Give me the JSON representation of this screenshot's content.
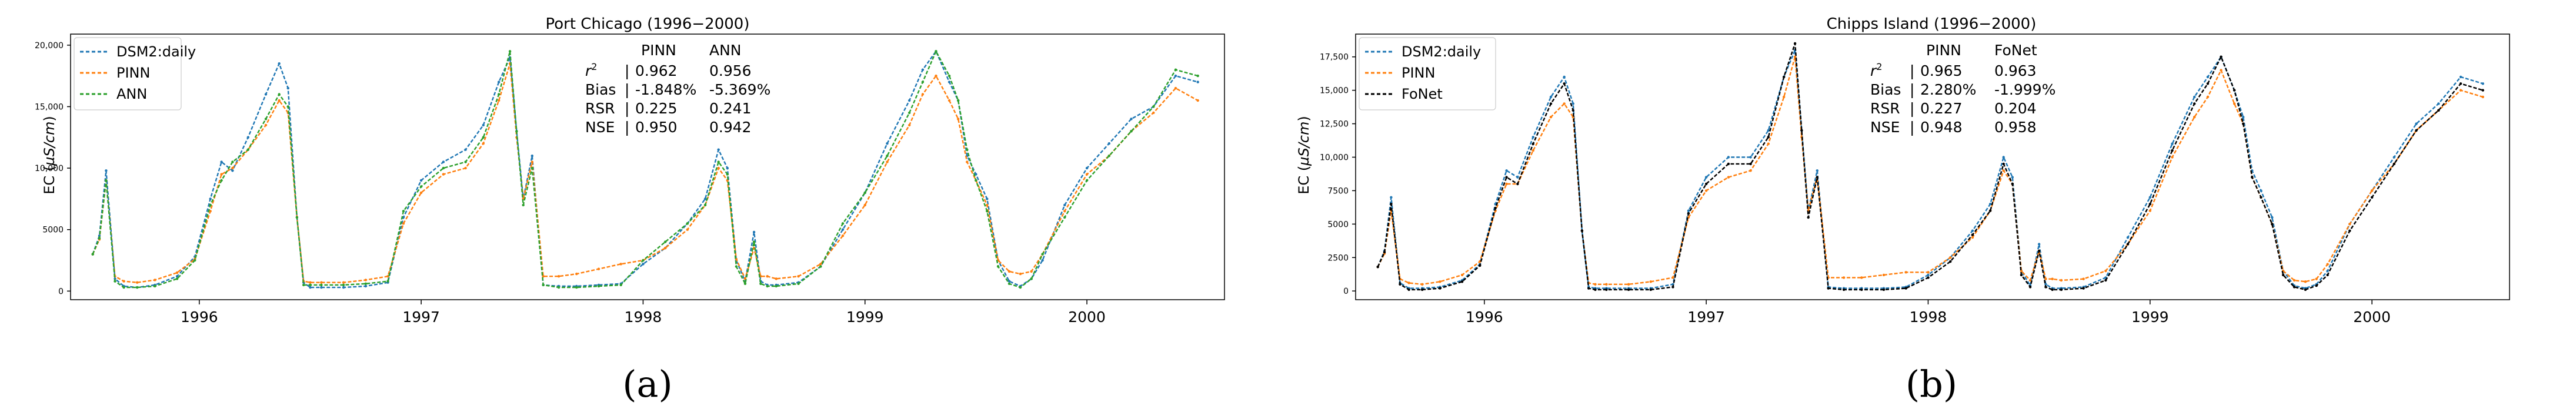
{
  "figure_captions": [
    "(a)",
    "(b)"
  ],
  "chart_data": [
    {
      "type": "line",
      "title": "Port Chicago (1996−2000)",
      "xlabel": "",
      "ylabel": "EC (µS/cm)",
      "ylabel_main": "EC (",
      "ylabel_mu": "µS/cm",
      "ylabel_close": ")",
      "xlim": [
        1995.42,
        2000.62
      ],
      "ylim": [
        -700,
        20900
      ],
      "xticks": [
        1996,
        1997,
        1998,
        1999,
        2000
      ],
      "xtick_labels": [
        "1996",
        "1997",
        "1998",
        "1999",
        "2000"
      ],
      "yticks": [
        0,
        5000,
        10000,
        15000,
        20000
      ],
      "ytick_labels": [
        "0",
        "5000",
        "10,000",
        "15,000",
        "20,000"
      ],
      "legend_position": "top-left",
      "x": [
        1995.52,
        1995.55,
        1995.58,
        1995.62,
        1995.66,
        1995.72,
        1995.8,
        1995.9,
        1995.98,
        1996.05,
        1996.1,
        1996.15,
        1996.22,
        1996.3,
        1996.36,
        1996.4,
        1996.44,
        1996.47,
        1996.5,
        1996.55,
        1996.65,
        1996.75,
        1996.85,
        1996.92,
        1997.0,
        1997.1,
        1997.2,
        1997.28,
        1997.35,
        1997.4,
        1997.43,
        1997.46,
        1997.5,
        1997.55,
        1997.62,
        1997.7,
        1997.8,
        1997.9,
        1998.0,
        1998.1,
        1998.2,
        1998.28,
        1998.34,
        1998.38,
        1998.42,
        1998.46,
        1998.5,
        1998.53,
        1998.56,
        1998.6,
        1998.7,
        1998.8,
        1998.9,
        1999.0,
        1999.1,
        1999.2,
        1999.26,
        1999.32,
        1999.38,
        1999.42,
        1999.46,
        1999.5,
        1999.55,
        1999.6,
        1999.65,
        1999.7,
        1999.75,
        1999.8,
        1999.9,
        2000.0,
        2000.1,
        2000.2,
        2000.3,
        2000.4,
        2000.5
      ],
      "series": [
        {
          "name": "DSM2:daily",
          "color": "#1f77b4",
          "values": [
            3000,
            4500,
            9800,
            1000,
            400,
            300,
            500,
            1200,
            2800,
            7500,
            10500,
            9800,
            12500,
            16000,
            18500,
            16500,
            6000,
            700,
            300,
            300,
            300,
            400,
            700,
            6000,
            9000,
            10500,
            11500,
            13500,
            17000,
            19000,
            13000,
            7500,
            11000,
            500,
            400,
            400,
            500,
            600,
            2200,
            3500,
            5500,
            7500,
            11500,
            10000,
            2500,
            800,
            4800,
            800,
            500,
            500,
            700,
            2000,
            5000,
            8000,
            12000,
            15500,
            18000,
            19500,
            17000,
            15500,
            11000,
            9500,
            7500,
            2500,
            800,
            400,
            1000,
            2500,
            7000,
            10000,
            12000,
            14000,
            15000,
            17500,
            17000
          ]
        },
        {
          "name": "PINN",
          "color": "#ff7f0e",
          "values": [
            3000,
            4200,
            9000,
            1200,
            800,
            700,
            900,
            1500,
            2600,
            6500,
            9500,
            10000,
            11500,
            13500,
            15500,
            14500,
            6000,
            800,
            700,
            700,
            700,
            900,
            1200,
            5500,
            8000,
            9500,
            10000,
            12000,
            15500,
            18500,
            12500,
            7500,
            10500,
            1200,
            1200,
            1400,
            1800,
            2200,
            2500,
            3500,
            5000,
            7000,
            10000,
            9000,
            2600,
            1000,
            3500,
            1200,
            1200,
            1000,
            1200,
            2200,
            4500,
            7000,
            10500,
            13500,
            16000,
            17500,
            15500,
            14000,
            10500,
            9000,
            7000,
            2500,
            1600,
            1400,
            1600,
            3000,
            6500,
            9500,
            11000,
            13000,
            14500,
            16500,
            15500
          ]
        },
        {
          "name": "ANN",
          "color": "#2ca02c",
          "values": [
            3000,
            4300,
            9000,
            800,
            300,
            300,
            400,
            1000,
            2500,
            7000,
            9000,
            10500,
            11500,
            14000,
            16000,
            15000,
            6000,
            500,
            500,
            500,
            500,
            600,
            800,
            6500,
            8500,
            10000,
            10500,
            12500,
            16000,
            19500,
            13000,
            7000,
            10000,
            500,
            300,
            300,
            400,
            500,
            2500,
            4000,
            5500,
            7000,
            10500,
            9500,
            2000,
            600,
            4000,
            600,
            400,
            400,
            600,
            2000,
            5500,
            8000,
            11000,
            14500,
            17000,
            19500,
            17500,
            15500,
            11500,
            9000,
            6500,
            2000,
            600,
            300,
            1000,
            3000,
            6000,
            9000,
            11000,
            13000,
            15000,
            18000,
            17500
          ]
        }
      ],
      "stats_table": {
        "header": [
          "PINN",
          "ANN"
        ],
        "rows": [
          {
            "metric": "r",
            "metric_sup": "2",
            "sep": "| ",
            "values": [
              "0.962",
              "0.956"
            ]
          },
          {
            "metric": "Bias",
            "sep": "| ",
            "values": [
              "-1.848%",
              "-5.369%"
            ]
          },
          {
            "metric": "RSR",
            "sep": "| ",
            "values": [
              "0.225",
              "0.241"
            ]
          },
          {
            "metric": "NSE",
            "sep": "| ",
            "values": [
              "0.950",
              "0.942"
            ]
          }
        ]
      }
    },
    {
      "type": "line",
      "title": "Chipps Island (1996−2000)",
      "xlabel": "",
      "ylabel": "EC (µS/cm)",
      "ylabel_main": "EC (",
      "ylabel_mu": "µS/cm",
      "ylabel_close": ")",
      "xlim": [
        1995.42,
        2000.62
      ],
      "ylim": [
        -650,
        19200
      ],
      "xticks": [
        1996,
        1997,
        1998,
        1999,
        2000
      ],
      "xtick_labels": [
        "1996",
        "1997",
        "1998",
        "1999",
        "2000"
      ],
      "yticks": [
        0,
        2500,
        5000,
        7500,
        10000,
        12500,
        15000,
        17500
      ],
      "ytick_labels": [
        "0",
        "2500",
        "5000",
        "7500",
        "10,000",
        "12,500",
        "15,000",
        "17,500"
      ],
      "legend_position": "top-left",
      "x": [
        1995.52,
        1995.55,
        1995.58,
        1995.62,
        1995.66,
        1995.72,
        1995.8,
        1995.9,
        1995.98,
        1996.05,
        1996.1,
        1996.15,
        1996.22,
        1996.3,
        1996.36,
        1996.4,
        1996.44,
        1996.47,
        1996.5,
        1996.55,
        1996.65,
        1996.75,
        1996.85,
        1996.92,
        1997.0,
        1997.1,
        1997.2,
        1997.28,
        1997.35,
        1997.4,
        1997.43,
        1997.46,
        1997.5,
        1997.55,
        1997.62,
        1997.7,
        1997.8,
        1997.9,
        1998.0,
        1998.1,
        1998.2,
        1998.28,
        1998.34,
        1998.38,
        1998.42,
        1998.46,
        1998.5,
        1998.53,
        1998.56,
        1998.6,
        1998.7,
        1998.8,
        1998.9,
        1999.0,
        1999.1,
        1999.2,
        1999.26,
        1999.32,
        1999.38,
        1999.42,
        1999.46,
        1999.5,
        1999.55,
        1999.6,
        1999.65,
        1999.7,
        1999.75,
        1999.8,
        1999.9,
        2000.0,
        2000.1,
        2000.2,
        2000.3,
        2000.4,
        2000.5
      ],
      "series": [
        {
          "name": "DSM2:daily",
          "color": "#1f77b4",
          "values": [
            1800,
            3000,
            7000,
            600,
            200,
            200,
            300,
            800,
            2000,
            6500,
            9000,
            8500,
            11500,
            14500,
            16000,
            14000,
            4500,
            300,
            200,
            200,
            200,
            200,
            500,
            6000,
            8500,
            10000,
            10000,
            12000,
            16000,
            18000,
            12000,
            6000,
            9000,
            300,
            200,
            200,
            200,
            300,
            1200,
            2500,
            4500,
            6500,
            10000,
            8500,
            1500,
            400,
            3500,
            500,
            200,
            200,
            300,
            1000,
            4000,
            7000,
            11000,
            14500,
            16000,
            17500,
            15000,
            13000,
            9000,
            7500,
            5500,
            1500,
            400,
            200,
            500,
            1500,
            5000,
            7500,
            10000,
            12500,
            14000,
            16000,
            15500
          ]
        },
        {
          "name": "PINN",
          "color": "#ff7f0e",
          "values": [
            1800,
            2800,
            6000,
            900,
            600,
            500,
            700,
            1200,
            2200,
            6000,
            8000,
            8000,
            10500,
            13000,
            14000,
            13000,
            4500,
            600,
            500,
            500,
            500,
            700,
            1000,
            5500,
            7500,
            8500,
            9000,
            11000,
            14500,
            17500,
            11500,
            6000,
            8500,
            1000,
            1000,
            1000,
            1200,
            1400,
            1400,
            2500,
            4000,
            6000,
            9000,
            8000,
            1500,
            800,
            3000,
            900,
            900,
            800,
            900,
            1500,
            3500,
            6000,
            10000,
            13000,
            14500,
            16500,
            14000,
            12500,
            8500,
            7000,
            5000,
            1500,
            800,
            700,
            900,
            2000,
            5000,
            7500,
            9500,
            12000,
            13500,
            15000,
            14500
          ]
        },
        {
          "name": "FoNet",
          "color": "#000000",
          "values": [
            1800,
            2900,
            6500,
            500,
            100,
            100,
            200,
            700,
            1900,
            6200,
            8500,
            8000,
            11000,
            14000,
            15500,
            13500,
            4500,
            200,
            100,
            100,
            100,
            100,
            300,
            5800,
            8000,
            9500,
            9500,
            11500,
            16000,
            18500,
            12000,
            5500,
            8500,
            200,
            100,
            100,
            100,
            200,
            1000,
            2200,
            4200,
            6000,
            9500,
            8000,
            1200,
            300,
            3000,
            300,
            100,
            100,
            200,
            800,
            3500,
            6500,
            10500,
            14000,
            15500,
            17500,
            15000,
            12500,
            8500,
            7000,
            5000,
            1200,
            300,
            100,
            400,
            1200,
            4500,
            7000,
            9500,
            12000,
            13500,
            15500,
            15000
          ]
        }
      ],
      "stats_table": {
        "header": [
          "PINN",
          "FoNet"
        ],
        "rows": [
          {
            "metric": "r",
            "metric_sup": "2",
            "sep": "| ",
            "values": [
              "0.965",
              "0.963"
            ]
          },
          {
            "metric": "Bias",
            "sep": "| ",
            "values": [
              "2.280%",
              "-1.999%"
            ]
          },
          {
            "metric": "RSR",
            "sep": "| ",
            "values": [
              "0.227",
              "0.204"
            ]
          },
          {
            "metric": "NSE",
            "sep": "| ",
            "values": [
              "0.948",
              "0.958"
            ]
          }
        ]
      }
    }
  ]
}
